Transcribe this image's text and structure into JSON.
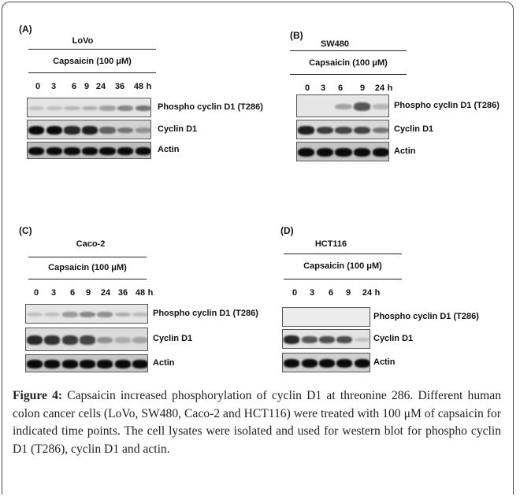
{
  "panels": [
    {
      "id": "A",
      "letter": "(A)",
      "cell_line": "LoVo",
      "condition": "Capsaicin (100 μM)",
      "timepoints": [
        "0",
        "3",
        "6",
        "9",
        "24",
        "36",
        "48"
      ],
      "unit": "h",
      "blots": [
        {
          "label": "Phospho cyclin D1 (T286)",
          "intensities": [
            0.05,
            0.05,
            0.1,
            0.15,
            0.2,
            0.35,
            0.45
          ],
          "bg": "#e4e4e4"
        },
        {
          "label": "Cyclin D1",
          "intensities": [
            1.0,
            1.0,
            0.85,
            0.9,
            0.55,
            0.45,
            0.3
          ],
          "bg": "#d3d3d3"
        },
        {
          "label": "Actin",
          "intensities": [
            1.0,
            1.0,
            1.0,
            1.0,
            1.0,
            1.0,
            1.0
          ],
          "bg": "#bdbdbd"
        }
      ]
    },
    {
      "id": "B",
      "letter": "(B)",
      "cell_line": "SW480",
      "condition": "Capsaicin (100 μM)",
      "timepoints": [
        "0",
        "3",
        "6",
        "9",
        "24"
      ],
      "unit": "h",
      "blots": [
        {
          "label": "Phospho cyclin D1 (T286)",
          "intensities": [
            0.0,
            0.0,
            0.2,
            0.6,
            0.1
          ],
          "bg": "#e6e6e6"
        },
        {
          "label": "Cyclin D1",
          "intensities": [
            0.9,
            0.75,
            0.7,
            0.7,
            0.45
          ],
          "bg": "#d9d9d9"
        },
        {
          "label": "Actin",
          "intensities": [
            1.0,
            1.0,
            1.0,
            1.0,
            1.0
          ],
          "bg": "#c4c4c4"
        }
      ]
    },
    {
      "id": "C",
      "letter": "(C)",
      "cell_line": "Caco-2",
      "condition": "Capsaicin (100 μM)",
      "timepoints": [
        "0",
        "3",
        "6",
        "9",
        "24",
        "36",
        "48"
      ],
      "unit": "h",
      "blots": [
        {
          "label": "Phospho cyclin D1 (T286)",
          "intensities": [
            0.05,
            0.05,
            0.25,
            0.35,
            0.3,
            0.15,
            0.08
          ],
          "bg": "#e6e6e6"
        },
        {
          "label": "Cyclin D1",
          "intensities": [
            0.85,
            0.8,
            0.75,
            0.7,
            0.3,
            0.15,
            0.2
          ],
          "bg": "#dcdcdc"
        },
        {
          "label": "Actin",
          "intensities": [
            1.0,
            1.0,
            1.0,
            1.0,
            1.0,
            1.0,
            1.0
          ],
          "bg": "#c6c6c6"
        }
      ]
    },
    {
      "id": "D",
      "letter": "(D)",
      "cell_line": "HCT116",
      "condition": "Capsaicin (100 μM)",
      "timepoints": [
        "0",
        "3",
        "6",
        "9",
        "24"
      ],
      "unit": "h",
      "blots": [
        {
          "label": "Phospho cyclin D1 (T286)",
          "intensities": [
            0.0,
            0.0,
            0.0,
            0.0,
            0.0
          ],
          "bg": "#ececec"
        },
        {
          "label": "Cyclin D1",
          "intensities": [
            0.85,
            0.6,
            0.65,
            0.65,
            0.05
          ],
          "bg": "#e4e4e4"
        },
        {
          "label": "Actin",
          "intensities": [
            1.0,
            1.0,
            1.0,
            1.0,
            1.0
          ],
          "bg": "#d0d0d0"
        }
      ]
    }
  ],
  "caption": {
    "label": "Figure 4:",
    "text": " Capsaicin increased phosphorylation of cyclin D1 at threonine 286. Different human colon cancer cells (LoVo, SW480, Caco-2 and HCT116) were treated with 100 μM of capsaicin for indicated time points. The cell lysates were isolated and used for western blot for phospho cyclin D1 (T286), cyclin D1 and actin."
  }
}
